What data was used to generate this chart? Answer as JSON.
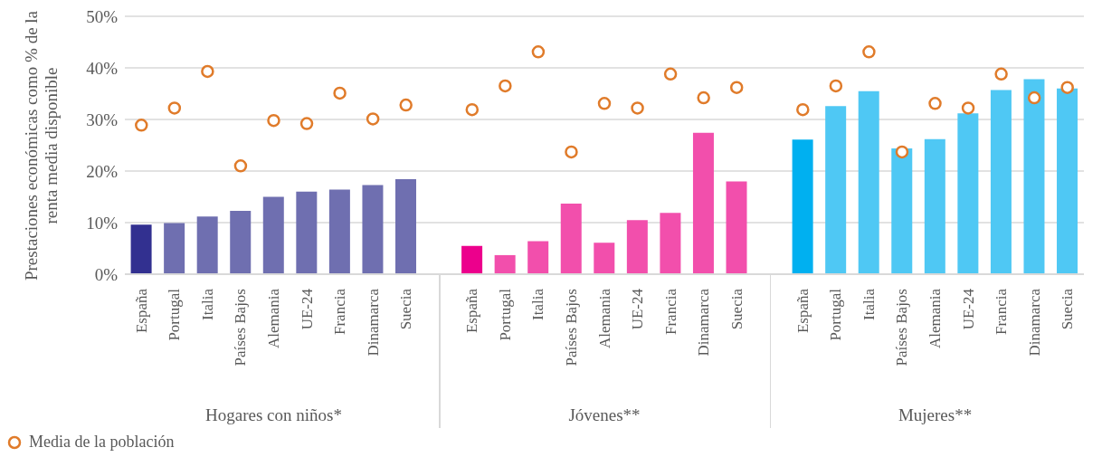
{
  "chart_data": {
    "type": "bar",
    "ylabel": "Prestaciones económicas como % de la renta media disponible",
    "categories": [
      "España",
      "Portugal",
      "Italia",
      "Países Bajos",
      "Alemania",
      "UE-24",
      "Francia",
      "Dinamarca",
      "Suecia",
      null,
      "España",
      "Portugal",
      "Italia",
      "Países Bajos",
      "Alemania",
      "UE-24",
      "Francia",
      "Dinamarca",
      "Suecia",
      null,
      "España",
      "Portugal",
      "Italia",
      "Países Bajos",
      "Alemania",
      "UE-24",
      "Francia",
      "Dinamarca",
      "Suecia"
    ],
    "series": [
      {
        "colors": [
          "#323090",
          "#6f6fb0",
          "#6f6fb0",
          "#6f6fb0",
          "#6f6fb0",
          "#6f6fb0",
          "#6f6fb0",
          "#6f6fb0",
          "#6f6fb0",
          null,
          "#ec008c",
          "#f24fac",
          "#f24fac",
          "#f24fac",
          "#f24fac",
          "#f24fac",
          "#f24fac",
          "#f24fac",
          "#f24fac",
          null,
          "#00b0f0",
          "#4fc8f4",
          "#4fc8f4",
          "#4fc8f4",
          "#4fc8f4",
          "#4fc8f4",
          "#4fc8f4",
          "#4fc8f4",
          "#4fc8f4"
        ],
        "values": [
          9.6,
          9.9,
          11.2,
          12.3,
          15.0,
          16.0,
          16.4,
          17.3,
          18.4,
          null,
          5.5,
          3.7,
          6.4,
          13.7,
          6.1,
          10.5,
          11.9,
          27.4,
          18.0,
          null,
          26.1,
          32.6,
          35.5,
          24.4,
          26.2,
          31.2,
          35.7,
          37.8,
          36.0
        ]
      },
      {
        "type": "scatter",
        "name": "Media de la población",
        "color": "#e07b2a",
        "values": [
          28.9,
          32.2,
          39.3,
          21.0,
          29.8,
          29.2,
          35.1,
          30.1,
          32.8,
          null,
          31.9,
          36.5,
          43.1,
          23.7,
          33.1,
          32.2,
          38.8,
          34.2,
          36.2,
          null,
          31.9,
          36.5,
          43.1,
          23.7,
          33.1,
          32.2,
          38.8,
          34.2,
          36.2
        ]
      }
    ],
    "annotations": [
      "Hogares con niños*",
      "Jóvenes**",
      "Mujeres**"
    ],
    "ylim": [
      0,
      50
    ],
    "yticks": [
      {
        "value": 0,
        "label": "0%"
      },
      {
        "value": 10,
        "label": "10%"
      },
      {
        "value": 20,
        "label": "20%"
      },
      {
        "value": 30,
        "label": "30%"
      },
      {
        "value": 40,
        "label": "40%"
      },
      {
        "value": 50,
        "label": "50%"
      }
    ],
    "grid": "y",
    "legend": "bottom left",
    "marker": "circle"
  }
}
